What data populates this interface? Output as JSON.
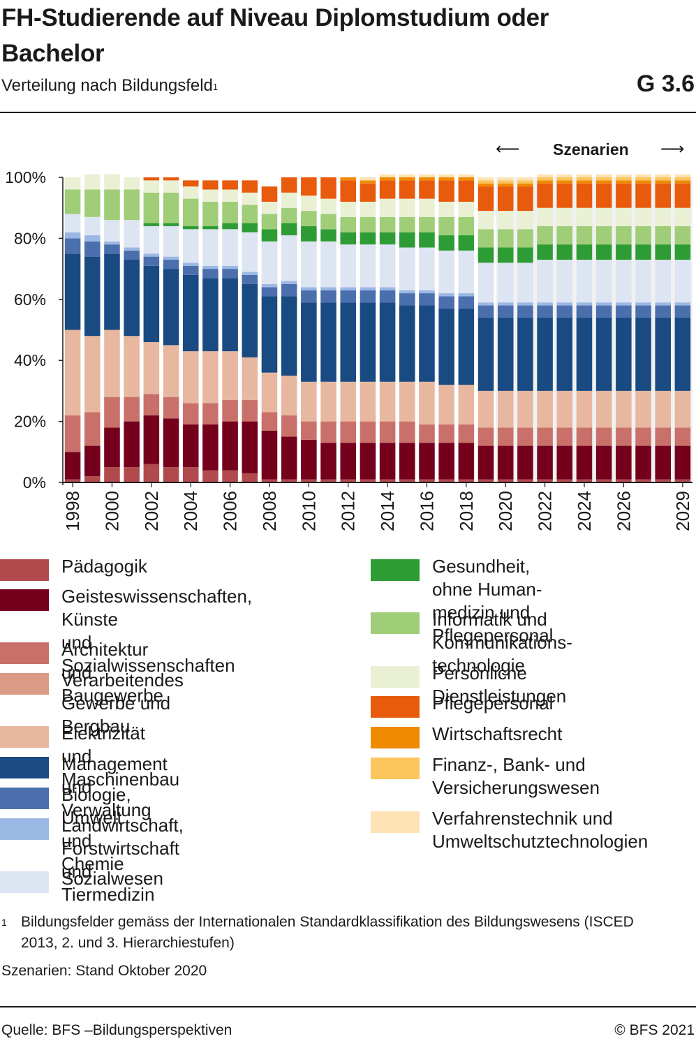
{
  "header": {
    "title": "FH-Studierende auf Niveau Diplomstudium oder Bachelor",
    "subtitle": "Verteilung nach Bildungsfeld",
    "subtitle_note": "1",
    "graphic_number": "G 3.6"
  },
  "scenario": {
    "label": "Szenarien",
    "arrow_left": "⟵",
    "arrow_right": "⟶"
  },
  "chart_data": {
    "type": "bar",
    "stacked": true,
    "scenario_start_year": "2020",
    "x": [
      "1998",
      "1999",
      "2000",
      "2001",
      "2002",
      "2003",
      "2004",
      "2005",
      "2006",
      "2007",
      "2008",
      "2009",
      "2010",
      "2011",
      "2012",
      "2013",
      "2014",
      "2015",
      "2016",
      "2017",
      "2018",
      "2019",
      "2020",
      "2021",
      "2022",
      "2023",
      "2024",
      "2025",
      "2026",
      "2027",
      "2028",
      "2029"
    ],
    "x_tick_labels": [
      "1998",
      "",
      "2000",
      "",
      "2002",
      "",
      "2004",
      "",
      "2006",
      "",
      "2008",
      "",
      "2010",
      "",
      "2012",
      "",
      "2014",
      "",
      "2016",
      "",
      "2018",
      "",
      "2020",
      "",
      "2022",
      "",
      "2024",
      "",
      "2026",
      "",
      "",
      "2029"
    ],
    "ylim": [
      0,
      100
    ],
    "y_ticks": [
      0,
      20,
      40,
      60,
      80,
      100
    ],
    "y_tick_labels": [
      "0%",
      "20%",
      "40%",
      "60%",
      "80%",
      "100%"
    ],
    "grid": false,
    "legend_position": "bottom",
    "series": [
      {
        "name": "Pädagogik",
        "color": "#b04a4d",
        "values": [
          1,
          2,
          5,
          5,
          6,
          5,
          5,
          4,
          4,
          3,
          1,
          1,
          1,
          1,
          1,
          1,
          1,
          1,
          1,
          1,
          1,
          1,
          1,
          1,
          1,
          1,
          1,
          1,
          1,
          1,
          1,
          1
        ]
      },
      {
        "name": "Geisteswissenschaften, Künste und Sozialwissenschaften",
        "color": "#74001c",
        "values": [
          9,
          10,
          13,
          15,
          16,
          16,
          14,
          15,
          16,
          17,
          16,
          14,
          13,
          12,
          12,
          12,
          12,
          12,
          12,
          12,
          12,
          11,
          11,
          11,
          11,
          11,
          11,
          11,
          11,
          11,
          11,
          11
        ]
      },
      {
        "name": "Architektur und Baugewerbe",
        "color": "#c9706a",
        "values": [
          12,
          11,
          10,
          8,
          7,
          7,
          7,
          7,
          7,
          7,
          6,
          7,
          6,
          7,
          7,
          7,
          7,
          7,
          6,
          6,
          6,
          6,
          6,
          6,
          6,
          6,
          6,
          6,
          6,
          6,
          6,
          6
        ]
      },
      {
        "name": "Verarbeitendes Gewerbe und Bergbau",
        "color": "#d99a86",
        "values": [
          0,
          0,
          0,
          0,
          0,
          0,
          0,
          0,
          0,
          0,
          0,
          0,
          0,
          0,
          0,
          0,
          0,
          0,
          0,
          0,
          0,
          0,
          0,
          0,
          0,
          0,
          0,
          0,
          0,
          0,
          0,
          0
        ]
      },
      {
        "name": "Elektrizität und Maschinenbau",
        "color": "#e8b79f",
        "values": [
          28,
          25,
          22,
          20,
          17,
          17,
          17,
          17,
          16,
          14,
          13,
          13,
          13,
          13,
          13,
          13,
          13,
          13,
          14,
          13,
          13,
          12,
          12,
          12,
          12,
          12,
          12,
          12,
          12,
          12,
          12,
          12
        ]
      },
      {
        "name": "Management und Verwaltung",
        "color": "#1a4a82",
        "values": [
          25,
          26,
          25,
          25,
          25,
          25,
          25,
          24,
          24,
          24,
          25,
          26,
          26,
          26,
          26,
          26,
          26,
          25,
          25,
          25,
          25,
          24,
          24,
          24,
          24,
          24,
          24,
          24,
          24,
          24,
          24,
          24
        ]
      },
      {
        "name": "Biologie, Umwelt und Chemie",
        "color": "#4b6fad",
        "values": [
          5,
          5,
          3,
          3,
          3,
          3,
          3,
          3,
          3,
          3,
          3,
          4,
          4,
          4,
          4,
          4,
          4,
          4,
          4,
          4,
          4,
          4,
          4,
          4,
          4,
          4,
          4,
          4,
          4,
          4,
          4,
          4
        ]
      },
      {
        "name": "Landwirtschaft, Forstwirtschaft und Tiermedizin",
        "color": "#9bb7e3",
        "values": [
          2,
          2,
          1,
          1,
          1,
          1,
          1,
          1,
          1,
          1,
          1,
          1,
          1,
          1,
          1,
          1,
          1,
          1,
          1,
          1,
          1,
          1,
          1,
          1,
          1,
          1,
          1,
          1,
          1,
          1,
          1,
          1
        ]
      },
      {
        "name": "Sozialwesen",
        "color": "#dde4f2",
        "values": [
          6,
          6,
          7,
          9,
          9,
          10,
          11,
          12,
          12,
          13,
          14,
          15,
          15,
          15,
          14,
          14,
          14,
          14,
          14,
          14,
          14,
          13,
          13,
          13,
          14,
          14,
          14,
          14,
          14,
          14,
          14,
          14
        ]
      },
      {
        "name": "Gesundheit, ohne Humanmedizin und Pflegepersonal",
        "color": "#2e9c35",
        "values": [
          0,
          0,
          0,
          0,
          1,
          1,
          1,
          1,
          2,
          3,
          4,
          4,
          5,
          4,
          4,
          4,
          4,
          5,
          5,
          5,
          5,
          5,
          5,
          5,
          5,
          5,
          5,
          5,
          5,
          5,
          5,
          5
        ]
      },
      {
        "name": "Informatik und Kommunikationstechnologie",
        "color": "#9fcd78",
        "values": [
          8,
          9,
          10,
          10,
          10,
          10,
          9,
          8,
          7,
          6,
          5,
          5,
          5,
          5,
          5,
          5,
          5,
          5,
          5,
          6,
          6,
          6,
          6,
          6,
          6,
          6,
          6,
          6,
          6,
          6,
          6,
          6
        ]
      },
      {
        "name": "Persönliche Dienstleistungen",
        "color": "#e9f0d4",
        "values": [
          4,
          5,
          5,
          4,
          4,
          4,
          4,
          4,
          4,
          4,
          4,
          5,
          5,
          5,
          5,
          5,
          6,
          6,
          6,
          5,
          5,
          6,
          6,
          6,
          6,
          6,
          6,
          6,
          6,
          6,
          6,
          6
        ]
      },
      {
        "name": "Pflegepersonal",
        "color": "#e85a0c",
        "values": [
          0,
          0,
          0,
          0,
          1,
          1,
          2,
          3,
          3,
          4,
          5,
          5,
          6,
          7,
          7,
          6,
          6,
          6,
          6,
          7,
          7,
          8,
          8,
          8,
          8,
          8,
          8,
          8,
          8,
          8,
          8,
          8
        ]
      },
      {
        "name": "Wirtschaftsrecht",
        "color": "#f08a00",
        "values": [
          0,
          0,
          0,
          0,
          0,
          0,
          0,
          0,
          0,
          0,
          0,
          0,
          0,
          0,
          1,
          1,
          1,
          1,
          1,
          1,
          1,
          1,
          1,
          1,
          1,
          1,
          1,
          1,
          1,
          1,
          1,
          1
        ]
      },
      {
        "name": "Finanz-, Bank- und Versicherungswesen",
        "color": "#fbc55c",
        "values": [
          0,
          0,
          0,
          0,
          0,
          0,
          0,
          0,
          0,
          0,
          0,
          0,
          0,
          0,
          0,
          0,
          0,
          0,
          0,
          0,
          0,
          1,
          1,
          1,
          1,
          1,
          1,
          1,
          1,
          1,
          1,
          1
        ]
      },
      {
        "name": "Verfahrenstechnik und Umweltschutztechnologien",
        "color": "#fde2b4",
        "values": [
          0,
          0,
          0,
          0,
          0,
          0,
          0,
          0,
          0,
          0,
          0,
          0,
          0,
          0,
          0,
          1,
          1,
          1,
          1,
          1,
          1,
          1,
          1,
          1,
          1,
          1,
          1,
          1,
          1,
          1,
          1,
          1
        ]
      }
    ]
  },
  "legend": {
    "left": [
      {
        "label": "Pädagogik",
        "color": "#b04a4d",
        "name": "legend-item-paedagogik"
      },
      {
        "label": "Geisteswissenschaften, Künste\nund Sozialwissenschaften",
        "color": "#74001c",
        "name": "legend-item-geisteswissenschaften"
      },
      {
        "label": "Architektur und Baugewerbe",
        "color": "#c9706a",
        "name": "legend-item-architektur"
      },
      {
        "label": "Verarbeitendes Gewerbe und\nBergbau",
        "color": "#d99a86",
        "name": "legend-item-verarbeitendes-gewerbe"
      },
      {
        "label": "Elektrizität und Maschinenbau",
        "color": "#e8b79f",
        "name": "legend-item-elektrizitaet"
      },
      {
        "label": "Management und Verwaltung",
        "color": "#1a4a82",
        "name": "legend-item-management"
      },
      {
        "label": "Biologie, Umwelt und Chemie",
        "color": "#4b6fad",
        "name": "legend-item-biologie"
      },
      {
        "label": "Landwirtschaft, Forstwirtschaft\nund Tiermedizin",
        "color": "#9bb7e3",
        "name": "legend-item-landwirtschaft"
      },
      {
        "label": "Sozialwesen",
        "color": "#dde4f2",
        "name": "legend-item-sozialwesen"
      }
    ],
    "right": [
      {
        "label": "Gesundheit, ohne Human-\nmedizin und Pflegepersonal",
        "color": "#2e9c35",
        "name": "legend-item-gesundheit"
      },
      {
        "label": "Informatik und Kommunikations-\ntechnologie",
        "color": "#9fcd78",
        "name": "legend-item-informatik"
      },
      {
        "label": "Persönliche Dienstleistungen",
        "color": "#e9f0d4",
        "name": "legend-item-persoenliche-dienstleistungen"
      },
      {
        "label": "Pflegepersonal",
        "color": "#e85a0c",
        "name": "legend-item-pflegepersonal"
      },
      {
        "label": "Wirtschaftsrecht",
        "color": "#f08a00",
        "name": "legend-item-wirtschaftsrecht"
      },
      {
        "label": "Finanz-, Bank- und\nVersicherungswesen",
        "color": "#fbc55c",
        "name": "legend-item-finanz"
      },
      {
        "label": "Verfahrenstechnik und\nUmweltschutztechnologien",
        "color": "#fde2b4",
        "name": "legend-item-verfahrenstechnik"
      }
    ]
  },
  "footnote": {
    "mark": "1",
    "text": "Bildungsfelder gemäss der Internationalen Standardklassifikation des Bildungswesens (ISCED 2013, 2. und 3. Hierarchiestufen)"
  },
  "stand_note": "Szenarien: Stand Oktober 2020",
  "source": "Quelle: BFS –Bildungsperspektiven",
  "copyright": "© BFS 2021"
}
